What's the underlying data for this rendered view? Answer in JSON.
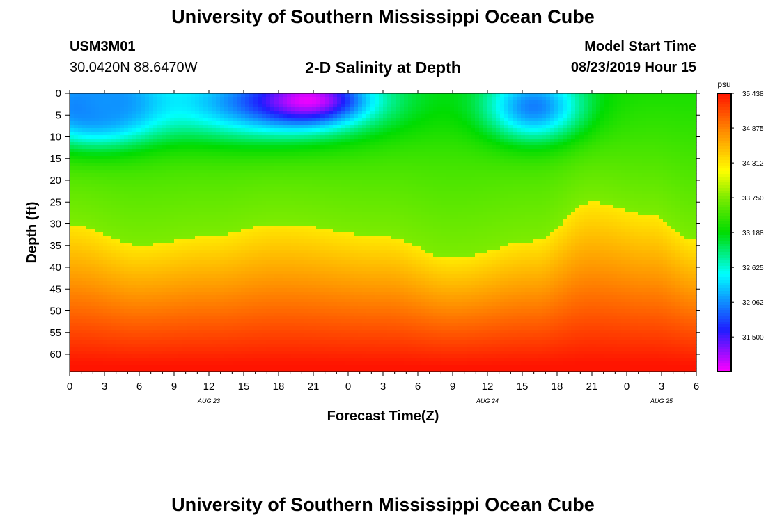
{
  "header": {
    "title": "University of Southern Mississippi Ocean Cube",
    "station_id": "USM3M01",
    "coordinates": "30.0420N 88.6470W",
    "model_start_label": "Model Start Time",
    "model_start_value": "08/23/2019 Hour 15"
  },
  "footer": {
    "title": "University of Southern Mississippi Ocean Cube"
  },
  "chart_data": {
    "type": "heatmap",
    "title": "2-D Salinity at Depth",
    "xlabel": "Forecast Time(Z)",
    "ylabel": "Depth (ft)",
    "x_tick_labels": [
      "0",
      "3",
      "6",
      "9",
      "12",
      "15",
      "18",
      "21",
      "0",
      "3",
      "6",
      "9",
      "12",
      "15",
      "18",
      "21",
      "0",
      "3",
      "6"
    ],
    "x_range_hours": [
      0,
      54
    ],
    "date_labels": [
      {
        "hour": 12,
        "label": "AUG 23"
      },
      {
        "hour": 36,
        "label": "AUG 24"
      },
      {
        "hour": 51,
        "label": "AUG 25"
      }
    ],
    "y_tick_labels": [
      "0",
      "5",
      "10",
      "15",
      "20",
      "25",
      "30",
      "35",
      "40",
      "45",
      "50",
      "55",
      "60"
    ],
    "y_range_ft": [
      0,
      64
    ],
    "colorbar": {
      "unit": "psu",
      "min": 30.94,
      "max": 35.438,
      "tick_labels": [
        "35.438",
        "34.875",
        "34.312",
        "33.750",
        "33.188",
        "32.625",
        "32.062",
        "31.500"
      ],
      "tick_values": [
        35.438,
        34.875,
        34.312,
        33.75,
        33.188,
        32.625,
        32.062,
        31.5
      ]
    },
    "surface_features": [
      {
        "hour": 1.5,
        "depth": 3,
        "salinity": 31.9,
        "sx": 4,
        "sz": 6
      },
      {
        "hour": 3.5,
        "depth": 2,
        "salinity": 32.1,
        "sx": 3,
        "sz": 5
      },
      {
        "hour": 17,
        "depth": 2,
        "salinity": 32.0,
        "sx": 7,
        "sz": 6
      },
      {
        "hour": 20.5,
        "depth": 1.5,
        "salinity": 31.0,
        "sx": 3,
        "sz": 3.5
      },
      {
        "hour": 40,
        "depth": 3,
        "salinity": 32.0,
        "sx": 3,
        "sz": 5.5
      }
    ],
    "halocline_depth_ft": [
      {
        "hour": 0,
        "depth": 30
      },
      {
        "hour": 6,
        "depth": 35
      },
      {
        "hour": 12,
        "depth": 33
      },
      {
        "hour": 18,
        "depth": 30
      },
      {
        "hour": 27,
        "depth": 33
      },
      {
        "hour": 33,
        "depth": 38
      },
      {
        "hour": 40,
        "depth": 34
      },
      {
        "hour": 45,
        "depth": 25
      },
      {
        "hour": 50,
        "depth": 28
      },
      {
        "hour": 54,
        "depth": 34
      }
    ]
  }
}
